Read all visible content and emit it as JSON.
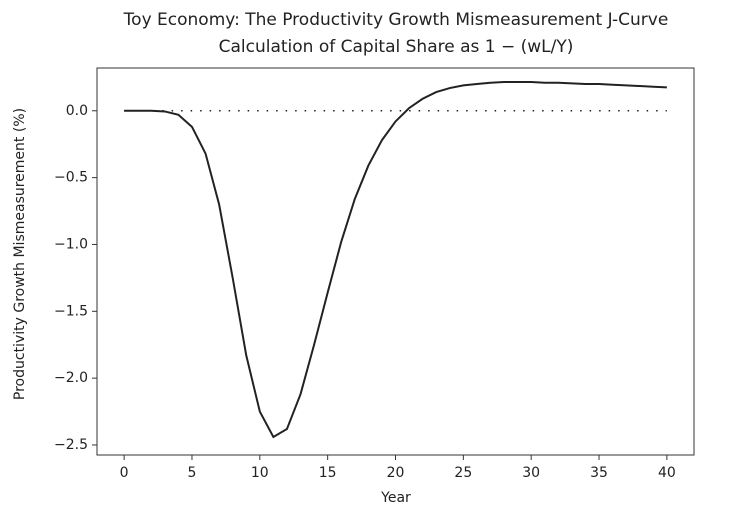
{
  "chart_data": {
    "type": "line",
    "title": "Toy Economy: The Productivity Growth Mismeasurement J-Curve",
    "subtitle": "Calculation of Capital Share as 1 − (wL/Y)",
    "x_label": "Year",
    "y_label": "Productivity Growth Mismeasurement (%)",
    "x": [
      0,
      1,
      2,
      3,
      4,
      5,
      6,
      7,
      8,
      9,
      10,
      11,
      12,
      13,
      14,
      15,
      16,
      17,
      18,
      19,
      20,
      21,
      22,
      23,
      24,
      25,
      26,
      27,
      28,
      29,
      30,
      31,
      32,
      33,
      34,
      35,
      36,
      37,
      38,
      39,
      40
    ],
    "series": [
      {
        "color": "#222222",
        "values": [
          0.0,
          0.0,
          0.0,
          -0.005,
          -0.03,
          -0.12,
          -0.32,
          -0.7,
          -1.25,
          -1.83,
          -2.25,
          -2.44,
          -2.38,
          -2.12,
          -1.75,
          -1.36,
          -0.98,
          -0.66,
          -0.41,
          -0.22,
          -0.08,
          0.02,
          0.09,
          0.14,
          0.17,
          0.19,
          0.2,
          0.21,
          0.215,
          0.215,
          0.215,
          0.21,
          0.21,
          0.205,
          0.2,
          0.2,
          0.195,
          0.19,
          0.185,
          0.18,
          0.175
        ]
      }
    ],
    "reference_line": {
      "value": 0,
      "style": "dotted"
    },
    "xlim": [
      -2,
      42
    ],
    "ylim": [
      -2.575,
      0.32
    ],
    "xticks": [
      0,
      5,
      10,
      15,
      20,
      25,
      30,
      35,
      40
    ],
    "yticks": [
      {
        "value": 0,
        "label": "0.0"
      },
      {
        "value": -0.5,
        "label": "−0.5"
      },
      {
        "value": -1,
        "label": "−1.0"
      },
      {
        "value": -1.5,
        "label": "−1.5"
      },
      {
        "value": -2,
        "label": "−2.0"
      },
      {
        "value": -2.5,
        "label": "−2.5"
      }
    ],
    "grid": false
  }
}
